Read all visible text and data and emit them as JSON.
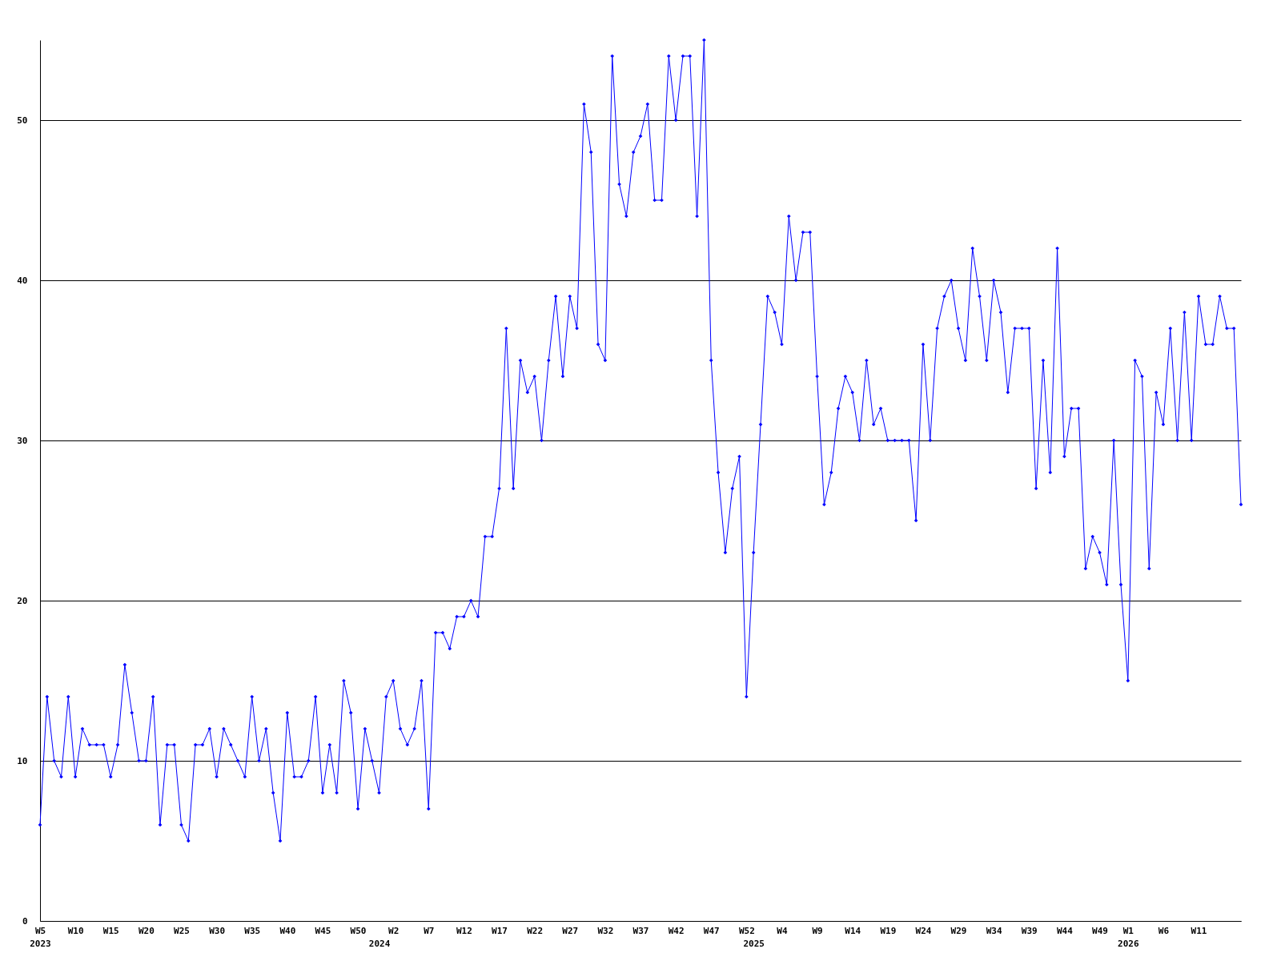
{
  "chart_data": {
    "type": "line",
    "categories": [
      "W5\n2023",
      null,
      null,
      null,
      null,
      "W10",
      null,
      null,
      null,
      null,
      "W15",
      null,
      null,
      null,
      null,
      "W20",
      null,
      null,
      null,
      null,
      "W25",
      null,
      null,
      null,
      null,
      "W30",
      null,
      null,
      null,
      null,
      "W35",
      null,
      null,
      null,
      null,
      "W40",
      null,
      null,
      null,
      null,
      "W45",
      null,
      null,
      null,
      null,
      "W50",
      null,
      null,
      "\n2024",
      null,
      "W2",
      null,
      null,
      null,
      null,
      "W7",
      null,
      null,
      null,
      null,
      "W12",
      null,
      null,
      null,
      null,
      "W17",
      null,
      null,
      null,
      null,
      "W22",
      null,
      null,
      null,
      null,
      "W27",
      null,
      null,
      null,
      null,
      "W32",
      null,
      null,
      null,
      null,
      "W37",
      null,
      null,
      null,
      null,
      "W42",
      null,
      null,
      null,
      null,
      "W47",
      null,
      null,
      null,
      null,
      "W52",
      "\n2025",
      null,
      null,
      null,
      "W4",
      null,
      null,
      null,
      null,
      "W9",
      null,
      null,
      null,
      null,
      "W14",
      null,
      null,
      null,
      null,
      "W19",
      null,
      null,
      null,
      null,
      "W24",
      null,
      null,
      null,
      null,
      "W29",
      null,
      null,
      null,
      null,
      "W34",
      null,
      null,
      null,
      null,
      "W39",
      null,
      null,
      null,
      null,
      "W44",
      null,
      null,
      null,
      null,
      "W49",
      null,
      null,
      null,
      "W1\n2026",
      null,
      null,
      null,
      null,
      "W6",
      null,
      null,
      null,
      null,
      "W11",
      null,
      null,
      null,
      null,
      null,
      null
    ],
    "series": [
      {
        "color": "#0000ff",
        "values": [
          6,
          14,
          10,
          9,
          14,
          9,
          12,
          11,
          11,
          11,
          9,
          11,
          16,
          13,
          10,
          10,
          14,
          6,
          11,
          11,
          6,
          5,
          11,
          11,
          12,
          9,
          12,
          11,
          10,
          9,
          14,
          10,
          12,
          8,
          5,
          13,
          9,
          9,
          10,
          14,
          8,
          11,
          8,
          15,
          13,
          7,
          12,
          10,
          8,
          14,
          15,
          12,
          11,
          12,
          15,
          7,
          18,
          18,
          17,
          19,
          19,
          20,
          19,
          24,
          24,
          27,
          37,
          27,
          35,
          33,
          34,
          30,
          35,
          39,
          34,
          39,
          37,
          51,
          48,
          36,
          35,
          54,
          46,
          44,
          48,
          49,
          51,
          45,
          45,
          54,
          50,
          54,
          54,
          44,
          55,
          35,
          28,
          23,
          27,
          29,
          14,
          23,
          31,
          39,
          38,
          36,
          44,
          40,
          43,
          43,
          34,
          26,
          28,
          32,
          34,
          33,
          30,
          35,
          31,
          32,
          30,
          30,
          30,
          30,
          25,
          36,
          30,
          37,
          39,
          40,
          37,
          35,
          42,
          39,
          35,
          40,
          38,
          33,
          37,
          37,
          37,
          27,
          35,
          28,
          42,
          29,
          32,
          32,
          22,
          24,
          23,
          21,
          30,
          21,
          15,
          35,
          34,
          22,
          33,
          31,
          37,
          30,
          38,
          30,
          39,
          36,
          36,
          39,
          37,
          37,
          26
        ]
      }
    ],
    "ylim": [
      0,
      55
    ],
    "yticks": [
      0,
      10,
      20,
      30,
      40,
      50
    ],
    "grid": "y",
    "legend": false,
    "marker": "diamond",
    "line_style": "solid"
  }
}
